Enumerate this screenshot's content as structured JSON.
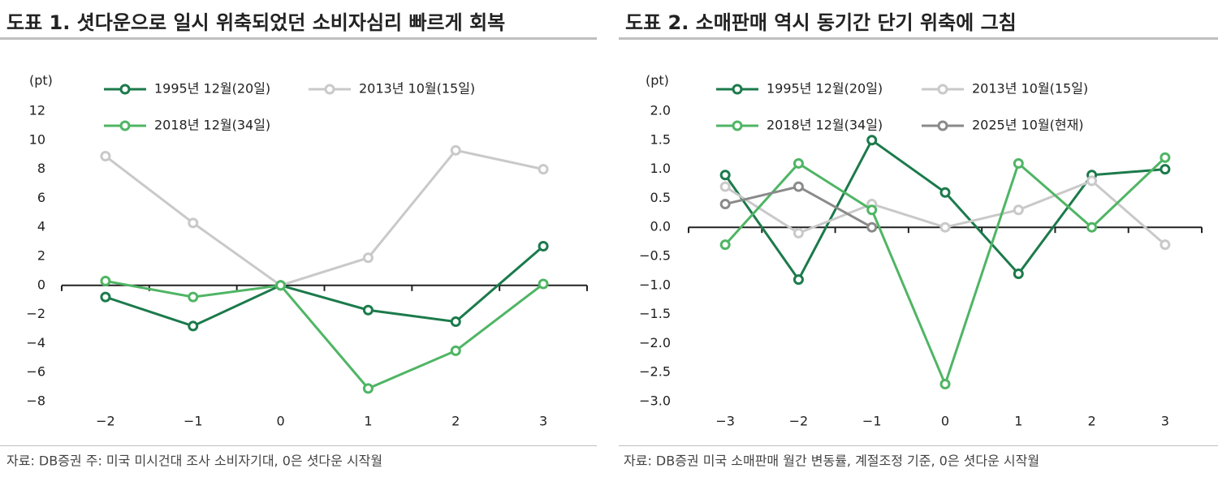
{
  "chart_data": [
    {
      "type": "line",
      "title": "도표 1. 셧다운으로 일시 위축되었던 소비자심리 빠르게 회복",
      "y_label": "(pt)",
      "source": "자료: DB증권 주: 미국 미시건대 조사 소비자기대, 0은 셧다운 시작월",
      "categories": [
        "−2",
        "−1",
        "0",
        "1",
        "2",
        "3"
      ],
      "ylim": [
        -8,
        12
      ],
      "yticks": [
        {
          "value": -8,
          "label": "−8"
        },
        {
          "value": -6,
          "label": "−6"
        },
        {
          "value": -4,
          "label": "−4"
        },
        {
          "value": -2,
          "label": "−2"
        },
        0,
        2,
        4,
        6,
        8,
        10,
        12
      ],
      "grid": false,
      "series": [
        {
          "name": "1995년 12월(20일)",
          "color": "#1b7a4b",
          "values": [
            -0.8,
            -2.8,
            0,
            -1.7,
            -2.5,
            2.7
          ]
        },
        {
          "name": "2013년 10월(15일)",
          "color": "#c9c9c9",
          "values": [
            8.9,
            4.3,
            0,
            1.9,
            9.3,
            8.0
          ]
        },
        {
          "name": "2018년 12월(34일)",
          "color": "#4fb564",
          "values": [
            0.3,
            -0.8,
            0,
            -7.1,
            -4.5,
            0.1
          ]
        }
      ]
    },
    {
      "type": "line",
      "title": "도표 2. 소매판매 역시 동기간 단기 위축에 그침",
      "y_label": "(pt)",
      "source": "자료: DB증권 미국 소매판매 월간 변동률, 계절조정 기준, 0은 셧다운 시작월",
      "categories": [
        "−3",
        "−2",
        "−1",
        "0",
        "1",
        "2",
        "3"
      ],
      "ylim": [
        -3,
        2
      ],
      "yticks": [
        {
          "value": -3,
          "label": "−3.0"
        },
        {
          "value": -2.5,
          "label": "−2.5"
        },
        {
          "value": -2,
          "label": "−2.0"
        },
        {
          "value": -1.5,
          "label": "−1.5"
        },
        {
          "value": -1,
          "label": "−1.0"
        },
        {
          "value": -0.5,
          "label": "−0.5"
        },
        {
          "value": 0,
          "label": "0.0"
        },
        0.5,
        {
          "value": 1,
          "label": "1.0"
        },
        1.5,
        {
          "value": 2,
          "label": "2.0"
        }
      ],
      "grid": false,
      "series": [
        {
          "name": "1995년 12월(20일)",
          "color": "#1b7a4b",
          "values": [
            0.9,
            -0.9,
            1.5,
            0.6,
            -0.8,
            0.9,
            1.0
          ]
        },
        {
          "name": "2013년 10월(15일)",
          "color": "#c9c9c9",
          "values": [
            0.7,
            -0.1,
            0.4,
            0.0,
            0.3,
            0.8,
            -0.3
          ]
        },
        {
          "name": "2018년 12월(34일)",
          "color": "#4fb564",
          "values": [
            -0.3,
            1.1,
            0.3,
            -2.7,
            1.1,
            0.0,
            1.2
          ]
        },
        {
          "name": "2025년 10월(현재)",
          "color": "#8a8a8a",
          "values": [
            0.4,
            0.7,
            0.0,
            null,
            null,
            null,
            null
          ]
        }
      ]
    }
  ]
}
